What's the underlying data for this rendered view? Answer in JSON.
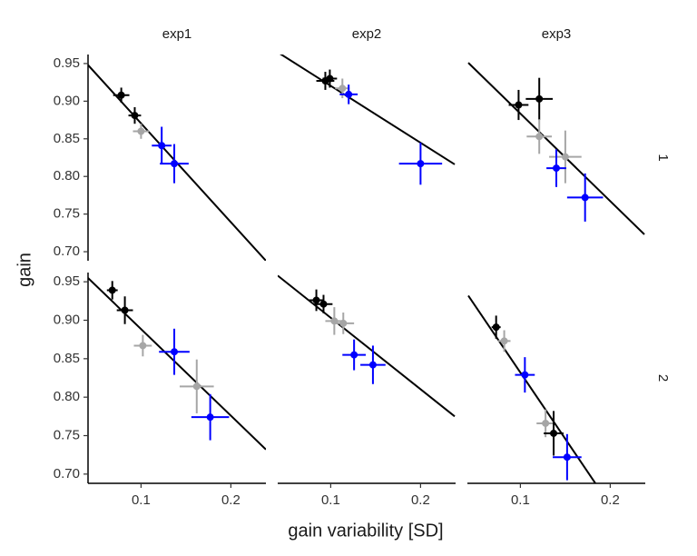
{
  "chart_data": {
    "type": "facet-scatter",
    "xlabel": "gain variability [SD]",
    "ylabel": "gain",
    "columns": [
      "exp1",
      "exp2",
      "exp3"
    ],
    "rows": [
      "1",
      "2"
    ],
    "xlim": [
      0.041,
      0.239
    ],
    "ylim": [
      0.688,
      0.962
    ],
    "xticks": [
      0.1,
      0.2
    ],
    "yticks": [
      {
        "value": 0.7,
        "label": "0.70"
      },
      {
        "value": 0.75,
        "label": "0.75"
      },
      {
        "value": 0.8,
        "label": "0.80"
      },
      {
        "value": 0.85,
        "label": "0.85"
      },
      {
        "value": 0.9,
        "label": "0.90"
      },
      {
        "value": 0.95,
        "label": "0.95"
      }
    ],
    "panels": [
      [
        {
          "points": {
            "x": [
              0.078,
              0.093,
              0.1,
              0.123,
              0.137
            ],
            "y": [
              0.908,
              0.881,
              0.86,
              0.841,
              0.817
            ],
            "xerr": [
              0.009,
              0.007,
              0.009,
              0.011,
              0.016
            ],
            "yerr": [
              0.01,
              0.011,
              0.01,
              0.025,
              0.026
            ],
            "colors": [
              "#000000",
              "#000000",
              "#a6a6a6",
              "#0000ff",
              "#0000ff"
            ]
          },
          "fit": {
            "x": [
              0.041,
              0.239
            ],
            "y": [
              0.948,
              0.688
            ]
          }
        },
        {
          "points": {
            "x": [
              0.094,
              0.099,
              0.113,
              0.12,
              0.2
            ],
            "y": [
              0.927,
              0.93,
              0.917,
              0.909,
              0.817
            ],
            "xerr": [
              0.01,
              0.008,
              0.008,
              0.01,
              0.024
            ],
            "yerr": [
              0.012,
              0.012,
              0.013,
              0.013,
              0.028
            ],
            "colors": [
              "#000000",
              "#000000",
              "#a6a6a6",
              "#0000ff",
              "#0000ff"
            ]
          },
          "fit": {
            "x": [
              0.041,
              0.238
            ],
            "y": [
              0.965,
              0.816
            ]
          }
        },
        {
          "points": {
            "x": [
              0.098,
              0.121,
              0.121,
              0.15,
              0.14,
              0.172
            ],
            "y": [
              0.895,
              0.903,
              0.853,
              0.826,
              0.811,
              0.772
            ],
            "xerr": [
              0.011,
              0.015,
              0.014,
              0.018,
              0.011,
              0.02
            ],
            "yerr": [
              0.02,
              0.028,
              0.023,
              0.035,
              0.025,
              0.032
            ],
            "colors": [
              "#000000",
              "#000000",
              "#a6a6a6",
              "#a6a6a6",
              "#0000ff",
              "#0000ff"
            ]
          },
          "fit": {
            "x": [
              0.042,
              0.238
            ],
            "y": [
              0.951,
              0.723
            ]
          }
        }
      ],
      [
        {
          "points": {
            "x": [
              0.068,
              0.082,
              0.102,
              0.137,
              0.162,
              0.177
            ],
            "y": [
              0.939,
              0.913,
              0.867,
              0.859,
              0.814,
              0.774
            ],
            "xerr": [
              0.006,
              0.009,
              0.01,
              0.017,
              0.019,
              0.021
            ],
            "yerr": [
              0.012,
              0.018,
              0.014,
              0.03,
              0.035,
              0.03
            ],
            "colors": [
              "#000000",
              "#000000",
              "#a6a6a6",
              "#0000ff",
              "#a6a6a6",
              "#0000ff"
            ]
          },
          "fit": {
            "x": [
              0.041,
              0.239
            ],
            "y": [
              0.955,
              0.732
            ]
          }
        },
        {
          "points": {
            "x": [
              0.084,
              0.092,
              0.104,
              0.114,
              0.126,
              0.147
            ],
            "y": [
              0.926,
              0.921,
              0.899,
              0.896,
              0.855,
              0.842
            ],
            "xerr": [
              0.008,
              0.01,
              0.01,
              0.012,
              0.013,
              0.014
            ],
            "yerr": [
              0.014,
              0.012,
              0.018,
              0.014,
              0.02,
              0.025
            ],
            "colors": [
              "#000000",
              "#000000",
              "#a6a6a6",
              "#a6a6a6",
              "#0000ff",
              "#0000ff"
            ]
          },
          "fit": {
            "x": [
              0.041,
              0.238
            ],
            "y": [
              0.958,
              0.775
            ]
          }
        },
        {
          "points": {
            "x": [
              0.073,
              0.082,
              0.105,
              0.128,
              0.137,
              0.152
            ],
            "y": [
              0.891,
              0.873,
              0.829,
              0.766,
              0.753,
              0.722
            ],
            "xerr": [
              0.005,
              0.007,
              0.011,
              0.01,
              0.011,
              0.016
            ],
            "yerr": [
              0.015,
              0.014,
              0.023,
              0.018,
              0.029,
              0.03
            ],
            "colors": [
              "#000000",
              "#a6a6a6",
              "#0000ff",
              "#a6a6a6",
              "#000000",
              "#0000ff"
            ]
          },
          "fit": {
            "x": [
              0.042,
              0.238
            ],
            "y": [
              0.932,
              0.594
            ]
          }
        }
      ]
    ]
  }
}
